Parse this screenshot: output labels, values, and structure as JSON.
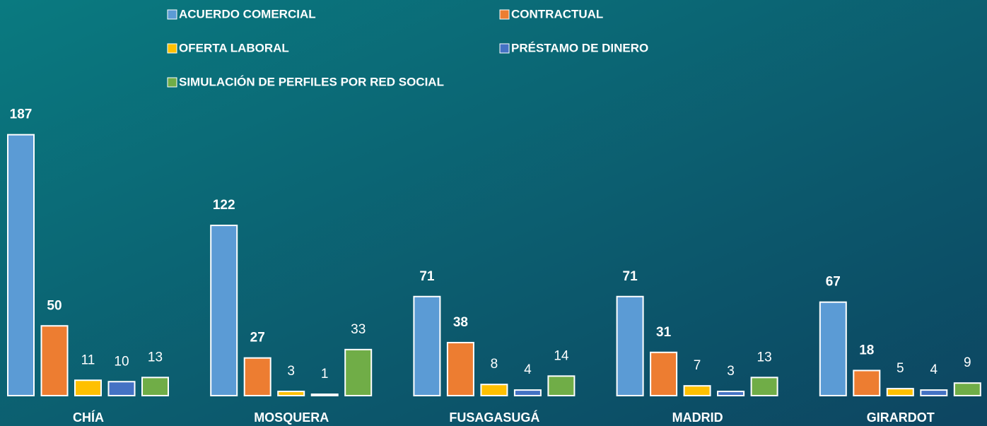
{
  "chart_data": {
    "type": "bar",
    "categories": [
      "CHÍA",
      "MOSQUERA",
      "FUSAGASUGÁ",
      "MADRID",
      "GIRARDOT"
    ],
    "series": [
      {
        "name": "ACUERDO COMERCIAL",
        "color": "#5b9bd5",
        "values": [
          187,
          122,
          71,
          71,
          67
        ]
      },
      {
        "name": "CONTRACTUAL",
        "color": "#ed7d31",
        "values": [
          50,
          27,
          38,
          31,
          18
        ]
      },
      {
        "name": "OFERTA LABORAL",
        "color": "#ffc000",
        "values": [
          11,
          3,
          8,
          7,
          5
        ]
      },
      {
        "name": "PRÉSTAMO DE DINERO",
        "color": "#4472c4",
        "values": [
          10,
          1,
          4,
          3,
          4
        ]
      },
      {
        "name": "SIMULACIÓN DE PERFILES POR RED SOCIAL",
        "color": "#70ad47",
        "values": [
          13,
          33,
          14,
          13,
          9
        ]
      }
    ],
    "ylim": [
      0,
      200
    ],
    "legend": "top"
  }
}
